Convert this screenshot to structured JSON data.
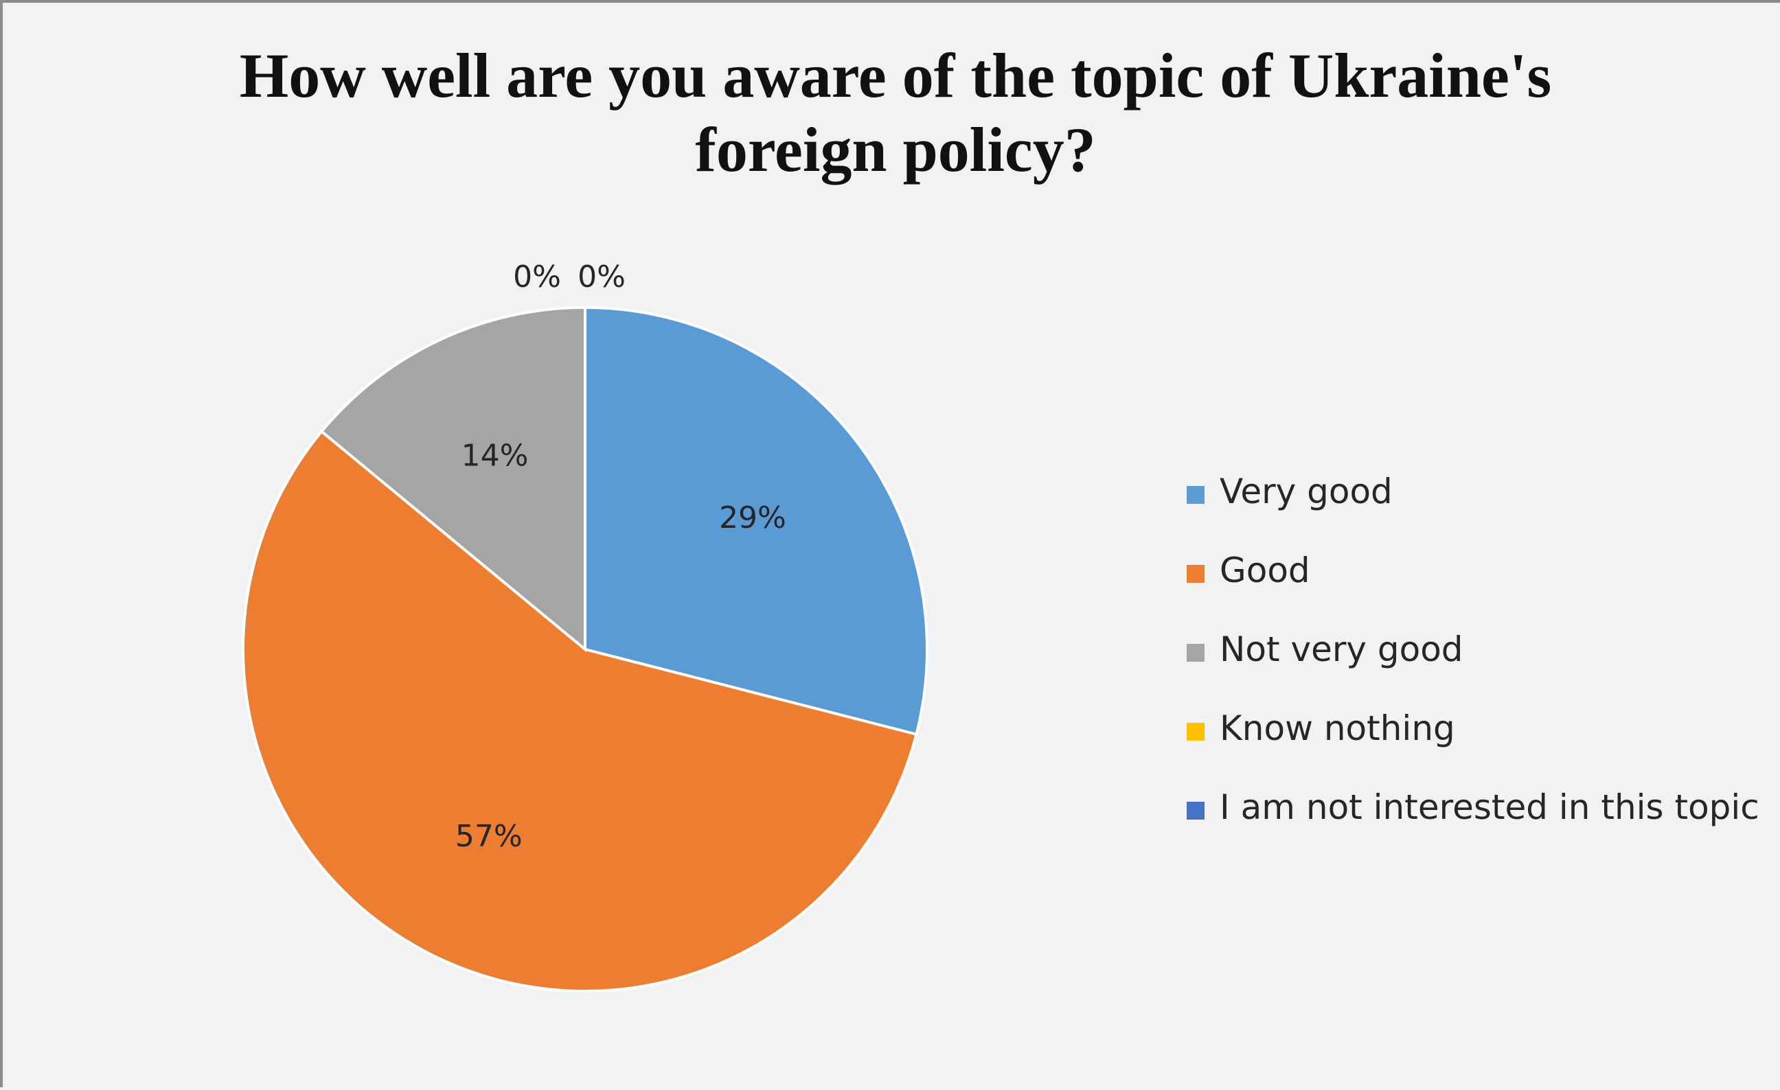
{
  "chart_data": {
    "type": "pie",
    "title": "How well are you aware of the topic of Ukraine's foreign policy?",
    "categories": [
      "Very good",
      "Good",
      "Not very good",
      "Know nothing",
      "I am not interested in this topic"
    ],
    "values": [
      29,
      57,
      14,
      0,
      0
    ],
    "labels": [
      "29%",
      "57%",
      "14%",
      "0%",
      "0%"
    ],
    "colors": [
      "#5b9bd5",
      "#ed7d31",
      "#a5a5a5",
      "#ffc000",
      "#4472c4"
    ],
    "legend": "right",
    "start_angle_deg": 0,
    "direction": "clockwise"
  }
}
